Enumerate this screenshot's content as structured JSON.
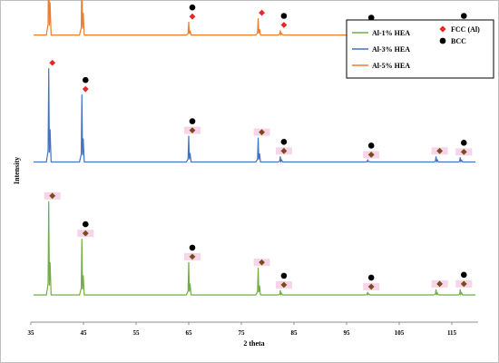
{
  "chart_data": {
    "type": "line",
    "xlabel": "2 theta",
    "ylabel": "Intensity",
    "xlim": [
      35,
      120
    ],
    "x_ticks": [
      35,
      45,
      55,
      65,
      75,
      85,
      95,
      105,
      115
    ],
    "legend_placement": "top-right",
    "grid": false,
    "series": [
      {
        "name": "Al-5% HEA",
        "color": "#ED7D31",
        "baseline": 0.95,
        "peaks": [
          {
            "x": 38.4,
            "h": 1.0
          },
          {
            "x": 44.7,
            "h": 0.68
          },
          {
            "x": 65.0,
            "h": 0.14
          },
          {
            "x": 78.2,
            "h": 0.18
          },
          {
            "x": 82.4,
            "h": 0.05
          },
          {
            "x": 99.0,
            "h": 0.03
          },
          {
            "x": 112.0,
            "h": 0.04
          },
          {
            "x": 116.6,
            "h": 0.05
          }
        ],
        "markers": [
          {
            "x": 38.4,
            "types": [
              "fcc"
            ]
          },
          {
            "x": 44.7,
            "types": [
              "fcc",
              "bcc"
            ]
          },
          {
            "x": 65.0,
            "types": [
              "fcc",
              "bcc"
            ]
          },
          {
            "x": 78.2,
            "types": [
              "fcc"
            ]
          },
          {
            "x": 82.4,
            "types": [
              "fcc",
              "bcc"
            ]
          },
          {
            "x": 99.0,
            "types": [
              "fcc",
              "bcc"
            ]
          },
          {
            "x": 112.0,
            "types": [
              "fcc"
            ]
          },
          {
            "x": 116.6,
            "types": [
              "fcc",
              "bcc"
            ]
          }
        ]
      },
      {
        "name": "Al-3% HEA",
        "color": "#4472C4",
        "baseline": 0.53,
        "peaks": [
          {
            "x": 38.4,
            "h": 1.0
          },
          {
            "x": 44.7,
            "h": 0.72
          },
          {
            "x": 65.0,
            "h": 0.28
          },
          {
            "x": 78.2,
            "h": 0.26
          },
          {
            "x": 82.4,
            "h": 0.06
          },
          {
            "x": 99.0,
            "h": 0.02
          },
          {
            "x": 112.0,
            "h": 0.06
          },
          {
            "x": 116.6,
            "h": 0.05
          }
        ],
        "markers": [
          {
            "x": 38.4,
            "types": [
              "fcc"
            ]
          },
          {
            "x": 44.7,
            "types": [
              "fcc",
              "bcc"
            ]
          },
          {
            "x": 65.0,
            "types": [
              "brown",
              "bcc"
            ]
          },
          {
            "x": 78.2,
            "types": [
              "brown"
            ]
          },
          {
            "x": 82.4,
            "types": [
              "brown",
              "bcc"
            ]
          },
          {
            "x": 99.0,
            "types": [
              "brown",
              "bcc"
            ]
          },
          {
            "x": 112.0,
            "types": [
              "brown"
            ]
          },
          {
            "x": 116.6,
            "types": [
              "brown",
              "bcc"
            ]
          }
        ]
      },
      {
        "name": "Al-1% HEA",
        "color": "#70AD47",
        "baseline": 0.09,
        "peaks": [
          {
            "x": 38.4,
            "h": 1.0
          },
          {
            "x": 44.7,
            "h": 0.6
          },
          {
            "x": 65.0,
            "h": 0.35
          },
          {
            "x": 78.2,
            "h": 0.29
          },
          {
            "x": 82.4,
            "h": 0.05
          },
          {
            "x": 99.0,
            "h": 0.03
          },
          {
            "x": 112.0,
            "h": 0.06
          },
          {
            "x": 116.6,
            "h": 0.06
          }
        ],
        "markers": [
          {
            "x": 38.4,
            "types": [
              "brown"
            ]
          },
          {
            "x": 44.7,
            "types": [
              "brown",
              "bcc"
            ]
          },
          {
            "x": 65.0,
            "types": [
              "brown",
              "bcc"
            ]
          },
          {
            "x": 78.2,
            "types": [
              "brown"
            ]
          },
          {
            "x": 82.4,
            "types": [
              "brown",
              "bcc"
            ]
          },
          {
            "x": 99.0,
            "types": [
              "brown",
              "bcc"
            ]
          },
          {
            "x": 112.0,
            "types": [
              "brown"
            ]
          },
          {
            "x": 116.6,
            "types": [
              "brown",
              "bcc"
            ]
          }
        ]
      }
    ],
    "legend": {
      "lines": [
        {
          "label": "Al-1% HEA",
          "color": "#70AD47"
        },
        {
          "label": "Al-3% HEA",
          "color": "#4472C4"
        },
        {
          "label": "Al-5% HEA",
          "color": "#ED7D31"
        }
      ],
      "symbols": [
        {
          "label": "FCC (Al)",
          "shape": "diamond",
          "color": "#E8262B"
        },
        {
          "label": "BCC",
          "shape": "circle",
          "color": "#000000"
        }
      ]
    },
    "marker_colors": {
      "fcc": "#E8262B",
      "brown": "#7B4A1E",
      "bcc": "#000000",
      "highlight": "#F7D5E8"
    }
  }
}
